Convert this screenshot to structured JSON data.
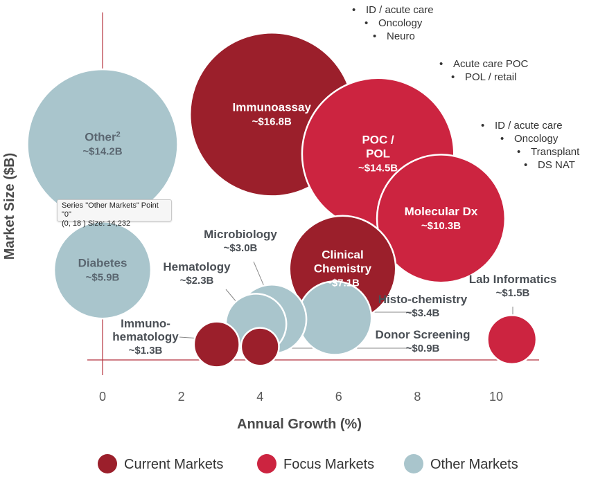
{
  "chart_data": {
    "type": "bubble",
    "xlabel": "Annual Growth (%)",
    "ylabel": "Market Size ($B)",
    "x_ticks": [
      "0",
      "2",
      "4",
      "6",
      "8",
      "10"
    ],
    "xlim": [
      0,
      11
    ],
    "series": [
      {
        "name": "Current Markets",
        "color": "#9b1f2b"
      },
      {
        "name": "Focus Markets",
        "color": "#cc2440"
      },
      {
        "name": "Other Markets",
        "color": "#a9c5cc"
      }
    ],
    "points": [
      {
        "series": "Other Markets",
        "label": "Other",
        "sup": "2",
        "size_label": "~$14.2B",
        "x": 0,
        "y": 18,
        "size": 14.2,
        "text": "inside-dark"
      },
      {
        "series": "Other Markets",
        "label": "Diabetes",
        "size_label": "~$5.9B",
        "x": 0,
        "y": 7.5,
        "size": 5.9,
        "text": "inside-dark"
      },
      {
        "series": "Other Markets",
        "label": "Histo-chemistry",
        "size_label": "~$3.4B",
        "x": 5.9,
        "y": 3.5,
        "size": 3.4,
        "text": "outside"
      },
      {
        "series": "Other Markets",
        "label": "Microbiology",
        "size_label": "~$3.0B",
        "x": 4.3,
        "y": 3.4,
        "size": 3.0,
        "text": "outside"
      },
      {
        "series": "Other Markets",
        "label": "Hematology",
        "size_label": "~$2.3B",
        "x": 3.9,
        "y": 3.0,
        "size": 2.3,
        "text": "outside"
      },
      {
        "series": "Current Markets",
        "label": "Immunoassay",
        "size_label": "~$16.8B",
        "x": 4.3,
        "y": 20.5,
        "size": 16.8,
        "text": "inside"
      },
      {
        "series": "Current Markets",
        "label": "Clinical Chemistry",
        "lines": [
          "Clinical",
          "Chemistry"
        ],
        "size_label": "~$7.1B",
        "x": 6.1,
        "y": 7.6,
        "size": 7.1,
        "text": "inside"
      },
      {
        "series": "Current Markets",
        "label": "Immuno-hematology",
        "lines": [
          "Immuno-",
          "hematology"
        ],
        "size_label": "~$1.3B",
        "x": 2.9,
        "y": 1.3,
        "size": 1.3,
        "text": "outside"
      },
      {
        "series": "Current Markets",
        "label": "Donor Screening",
        "size_label": "~$0.9B",
        "x": 4.0,
        "y": 1.1,
        "size": 0.9,
        "text": "outside"
      },
      {
        "series": "Focus Markets",
        "label": "POC / POL",
        "lines": [
          "POC /",
          "POL"
        ],
        "size_label": "~$14.5B",
        "x": 7.0,
        "y": 17.2,
        "size": 14.5,
        "text": "inside"
      },
      {
        "series": "Focus Markets",
        "label": "Molecular Dx",
        "size_label": "~$10.3B",
        "x": 8.6,
        "y": 11.8,
        "size": 10.3,
        "text": "inside"
      },
      {
        "series": "Focus Markets",
        "label": "Lab Informatics",
        "size_label": "~$1.5B",
        "x": 10.4,
        "y": 1.7,
        "size": 1.5,
        "text": "outside"
      }
    ],
    "notes": [
      {
        "for": "Immunoassay",
        "items": [
          "ID / acute care",
          "Oncology",
          "Neuro"
        ]
      },
      {
        "for": "POC / POL",
        "items": [
          "Acute care POC",
          "POL / retail"
        ]
      },
      {
        "for": "Molecular Dx",
        "items": [
          "ID / acute care",
          "Oncology",
          "Transplant",
          "DS NAT"
        ]
      }
    ],
    "legend_position": "bottom",
    "grid": false
  },
  "tooltip": {
    "line1": "Series \"Other Markets\" Point \"0\"",
    "line2": "(0, 18 ) Size: 14,232"
  }
}
